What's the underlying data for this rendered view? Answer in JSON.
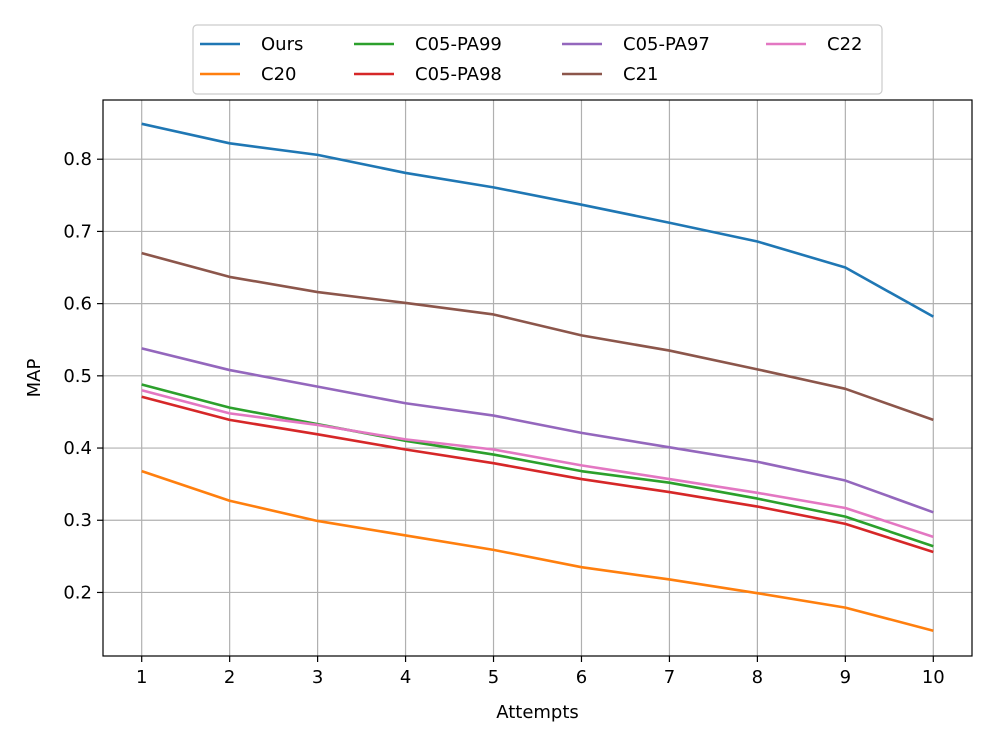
{
  "chart_data": {
    "type": "line",
    "title": "",
    "xlabel": "Attempts",
    "ylabel": "MAP",
    "x": [
      1,
      2,
      3,
      4,
      5,
      6,
      7,
      8,
      9,
      10
    ],
    "xticks": [
      "1",
      "2",
      "3",
      "4",
      "5",
      "6",
      "7",
      "8",
      "9",
      "10"
    ],
    "yticks": [
      "0.2",
      "0.3",
      "0.4",
      "0.5",
      "0.6",
      "0.7",
      "0.8"
    ],
    "xlim": [
      0.56,
      10.44
    ],
    "ylim": [
      0.112,
      0.882
    ],
    "grid": true,
    "legend_position": "top-center-outside",
    "series": [
      {
        "name": "Ours",
        "color": "#1f77b4",
        "values": [
          0.849,
          0.822,
          0.806,
          0.781,
          0.761,
          0.737,
          0.712,
          0.686,
          0.65,
          0.582
        ]
      },
      {
        "name": "C20",
        "color": "#ff7f0e",
        "values": [
          0.368,
          0.327,
          0.299,
          0.279,
          0.259,
          0.235,
          0.218,
          0.199,
          0.179,
          0.147
        ]
      },
      {
        "name": "C05-PA99",
        "color": "#2ca02c",
        "values": [
          0.488,
          0.456,
          0.433,
          0.41,
          0.391,
          0.368,
          0.352,
          0.33,
          0.305,
          0.264
        ]
      },
      {
        "name": "C05-PA98",
        "color": "#d62728",
        "values": [
          0.471,
          0.439,
          0.419,
          0.398,
          0.379,
          0.357,
          0.339,
          0.319,
          0.295,
          0.256
        ]
      },
      {
        "name": "C05-PA97",
        "color": "#9467bd",
        "values": [
          0.538,
          0.508,
          0.485,
          0.462,
          0.445,
          0.421,
          0.401,
          0.381,
          0.355,
          0.311
        ]
      },
      {
        "name": "C21",
        "color": "#8c564b",
        "values": [
          0.67,
          0.637,
          0.616,
          0.601,
          0.585,
          0.556,
          0.535,
          0.509,
          0.482,
          0.439
        ]
      },
      {
        "name": "C22",
        "color": "#e377c2",
        "values": [
          0.48,
          0.448,
          0.432,
          0.412,
          0.398,
          0.376,
          0.357,
          0.338,
          0.317,
          0.277
        ]
      }
    ]
  }
}
